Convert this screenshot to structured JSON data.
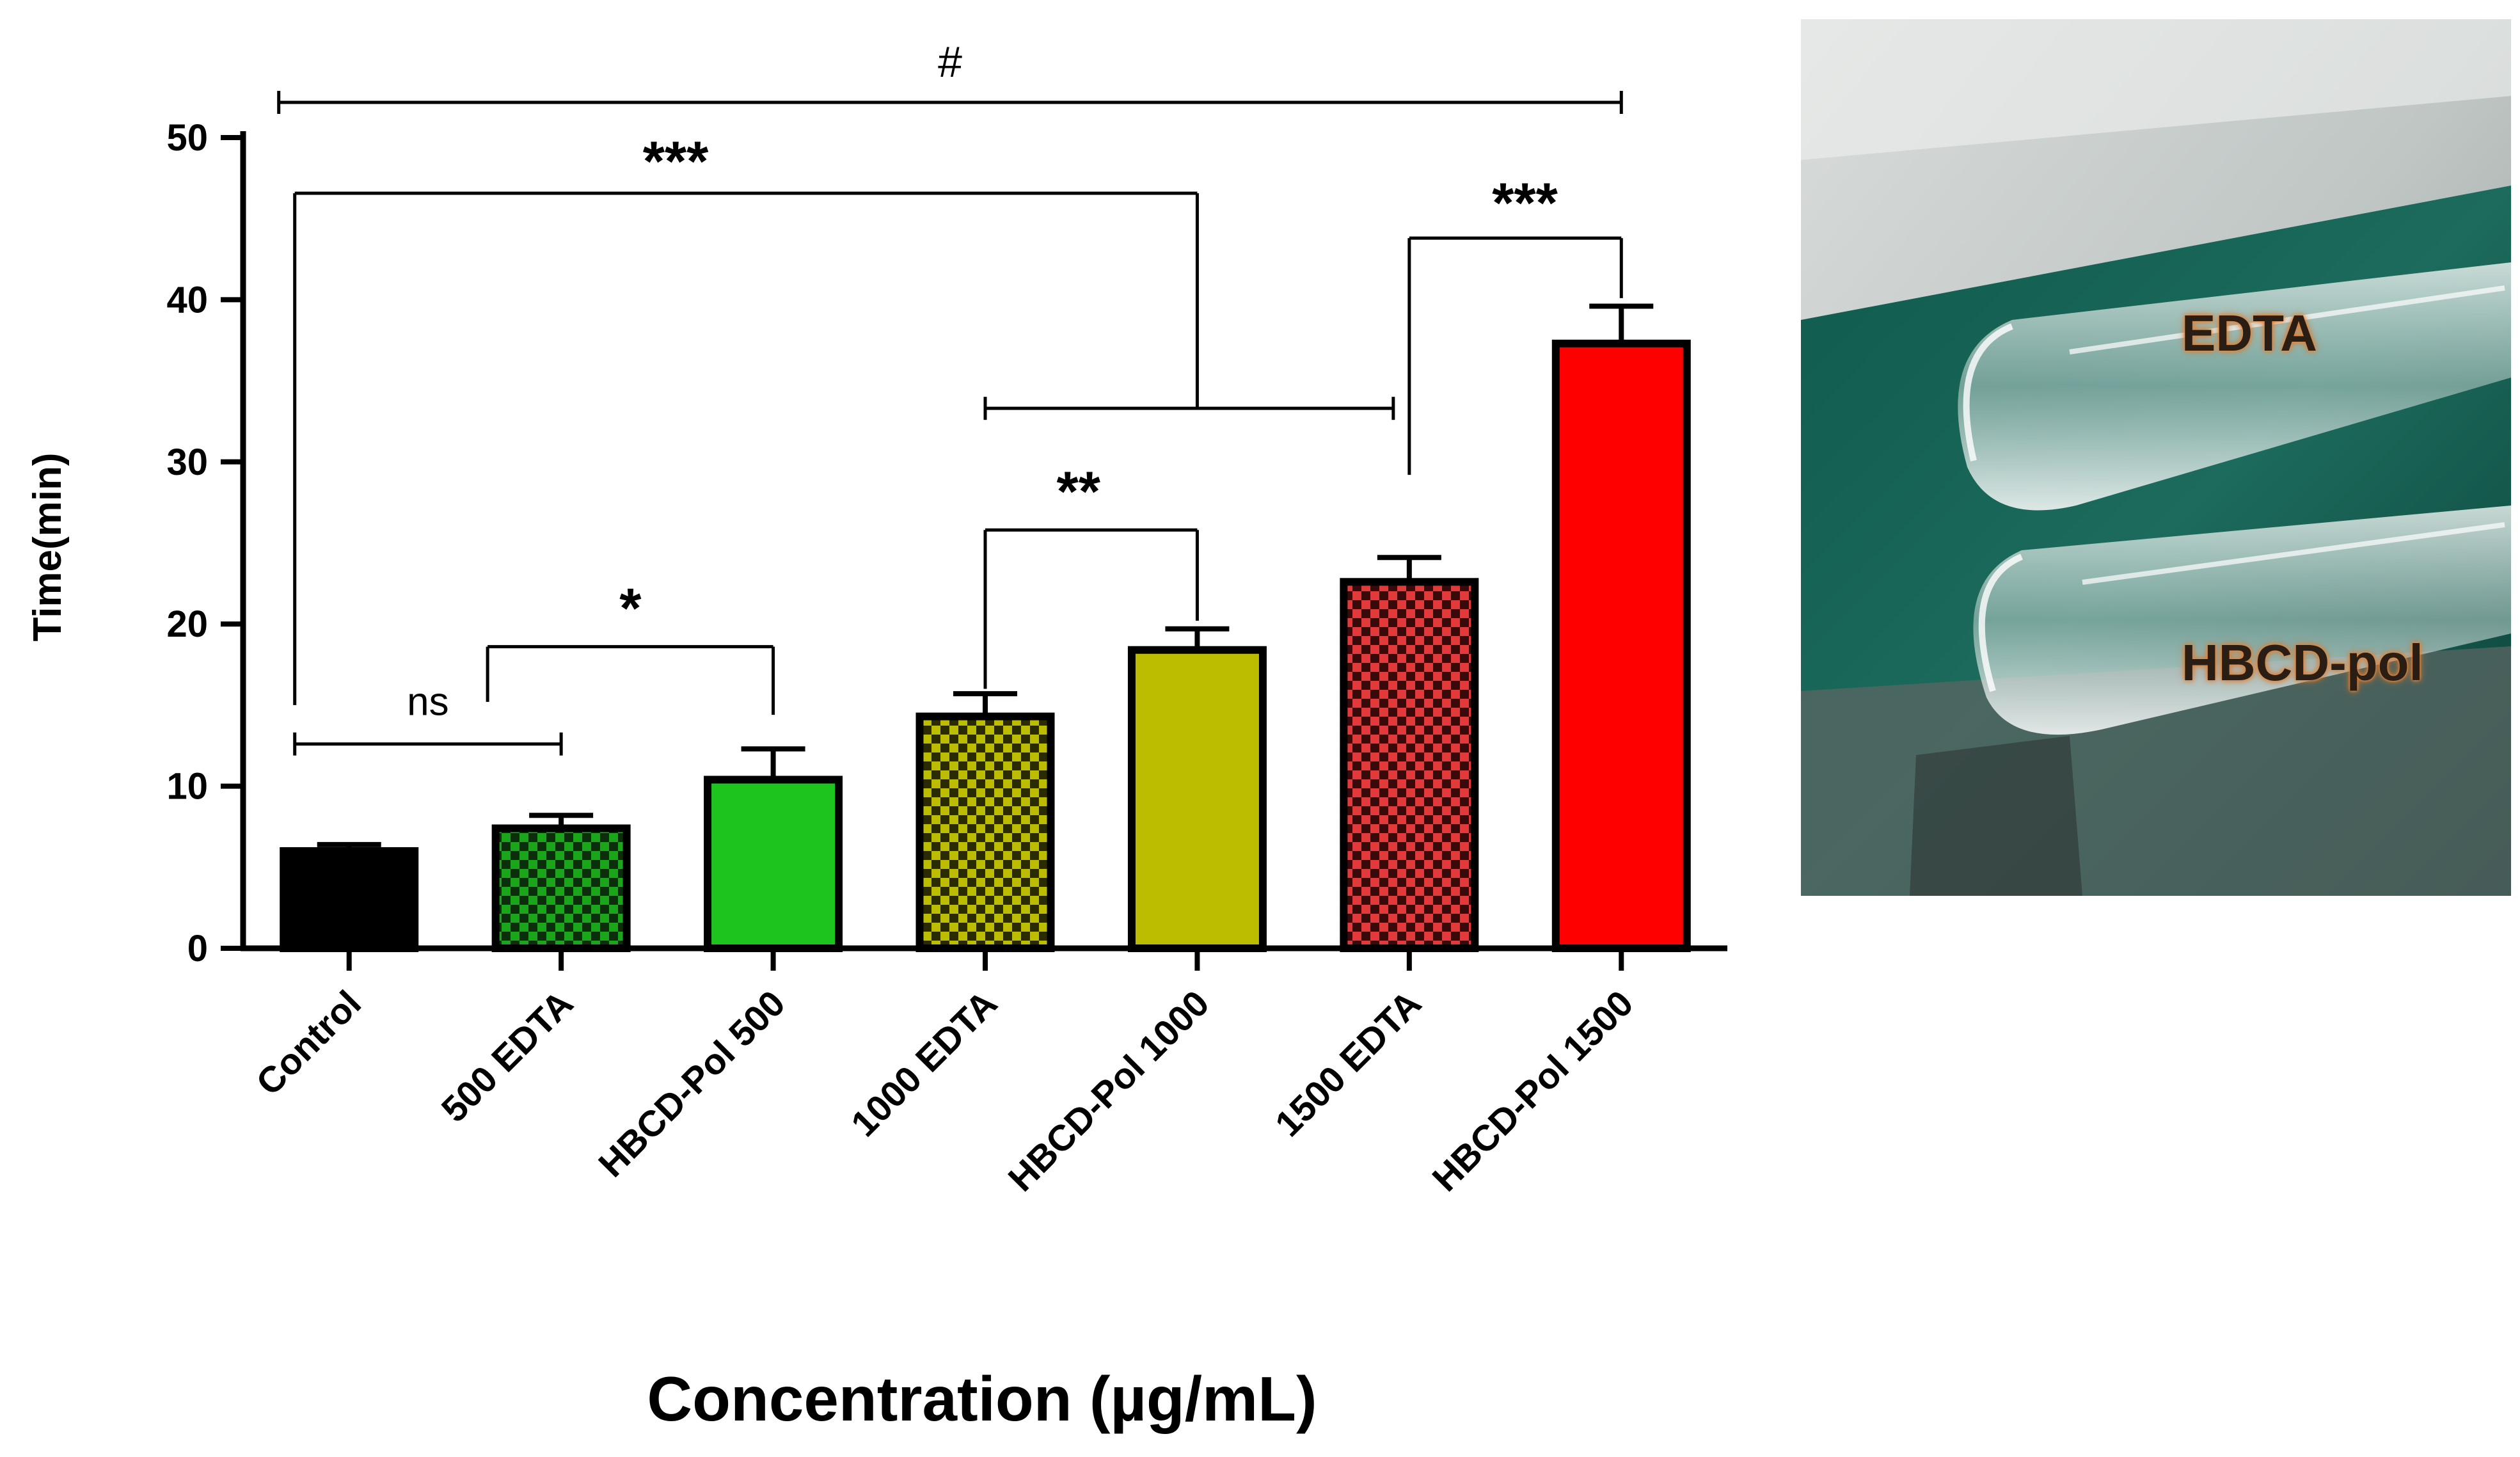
{
  "chart_data": {
    "type": "bar",
    "categories": [
      "Control",
      "500 EDTA",
      "HBCD-Pol 500",
      "1000 EDTA",
      "HBCD-Pol 1000",
      "1500 EDTA",
      "HBCD-Pol 1500"
    ],
    "values": [
      6.0,
      7.4,
      10.4,
      14.3,
      18.4,
      22.6,
      37.3
    ],
    "errors": [
      0.4,
      0.8,
      1.9,
      1.4,
      1.3,
      1.5,
      2.3
    ],
    "fill_colors": [
      "#000000",
      "#1aa51a",
      "#1ec41e",
      "#bdbd00",
      "#bdbd00",
      "#e23a3a",
      "#ff0000"
    ],
    "patterns": [
      "solid",
      "checker",
      "solid",
      "checker",
      "solid",
      "checker",
      "solid"
    ],
    "ylabel": "Time(min)",
    "xlabel": "Concentration (µg/mL)",
    "ylim": [
      0,
      50
    ],
    "yticks": [
      0,
      10,
      20,
      30,
      40,
      50
    ],
    "grid": false,
    "significance": [
      {
        "label": "#",
        "from": "Control",
        "to": "HBCD-Pol 1500"
      },
      {
        "label": "***",
        "from": "Control",
        "to": "1000 EDTA – 1500 EDTA"
      },
      {
        "label": "***",
        "from": "1500 EDTA",
        "to": "HBCD-Pol 1500"
      },
      {
        "label": "**",
        "from": "1000 EDTA",
        "to": "HBCD-Pol 1000"
      },
      {
        "label": "*",
        "from": "500 EDTA",
        "to": "HBCD-Pol 500"
      },
      {
        "label": "ns",
        "from": "Control",
        "to": "500 EDTA"
      }
    ]
  },
  "photo": {
    "labels": [
      "EDTA",
      "HBCD-pol"
    ]
  }
}
